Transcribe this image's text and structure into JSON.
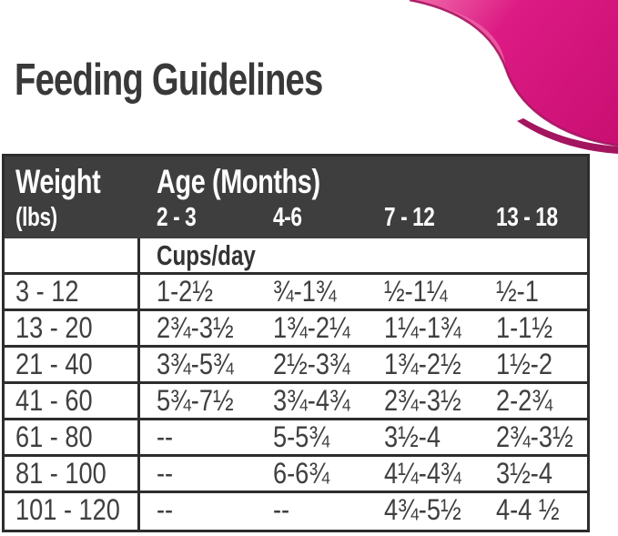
{
  "title": "Feeding Guidelines",
  "colors": {
    "accent_pink": "#dc1b84",
    "accent_pink_deep": "#c80e71",
    "accent_pink_light": "#ee5fa5",
    "accent_pink_rim": "#a3155f",
    "table_header_bg": "#3e3e3e",
    "table_line": "#2d2d2d",
    "body_text": "#3f3f3f",
    "header_text": "#ffffff"
  },
  "chart_data": {
    "type": "table",
    "title": "Feeding Guidelines",
    "header": {
      "weight_label": "Weight",
      "weight_sublabel": "(lbs)",
      "age_label": "Age (Months)",
      "age_columns": [
        "2 - 3",
        "4-6",
        "7 - 12",
        "13 - 18"
      ]
    },
    "units_label": "Cups/day",
    "rows": [
      {
        "weight": "3 - 12",
        "cups_per_day": [
          "1-2½",
          "¾-1¾",
          "½-1¼",
          "½-1"
        ]
      },
      {
        "weight": "13 - 20",
        "cups_per_day": [
          "2¾-3½",
          "1¾-2¼",
          "1¼-1¾",
          "1-1½"
        ]
      },
      {
        "weight": "21 - 40",
        "cups_per_day": [
          "3¾-5¾",
          "2½-3¾",
          "1¾-2½",
          "1½-2"
        ]
      },
      {
        "weight": "41 - 60",
        "cups_per_day": [
          "5¾-7½",
          "3¾-4¾",
          "2¾-3½",
          "2-2¾"
        ]
      },
      {
        "weight": "61 - 80",
        "cups_per_day": [
          "--",
          "5-5¾",
          "3½-4",
          "2¾-3½"
        ]
      },
      {
        "weight": "81 - 100",
        "cups_per_day": [
          "--",
          "6-6¾",
          "4¼-4¾",
          "3½-4"
        ]
      },
      {
        "weight": "101 - 120",
        "cups_per_day": [
          "--",
          "--",
          "4¾-5½",
          "4-4 ½"
        ]
      }
    ]
  }
}
